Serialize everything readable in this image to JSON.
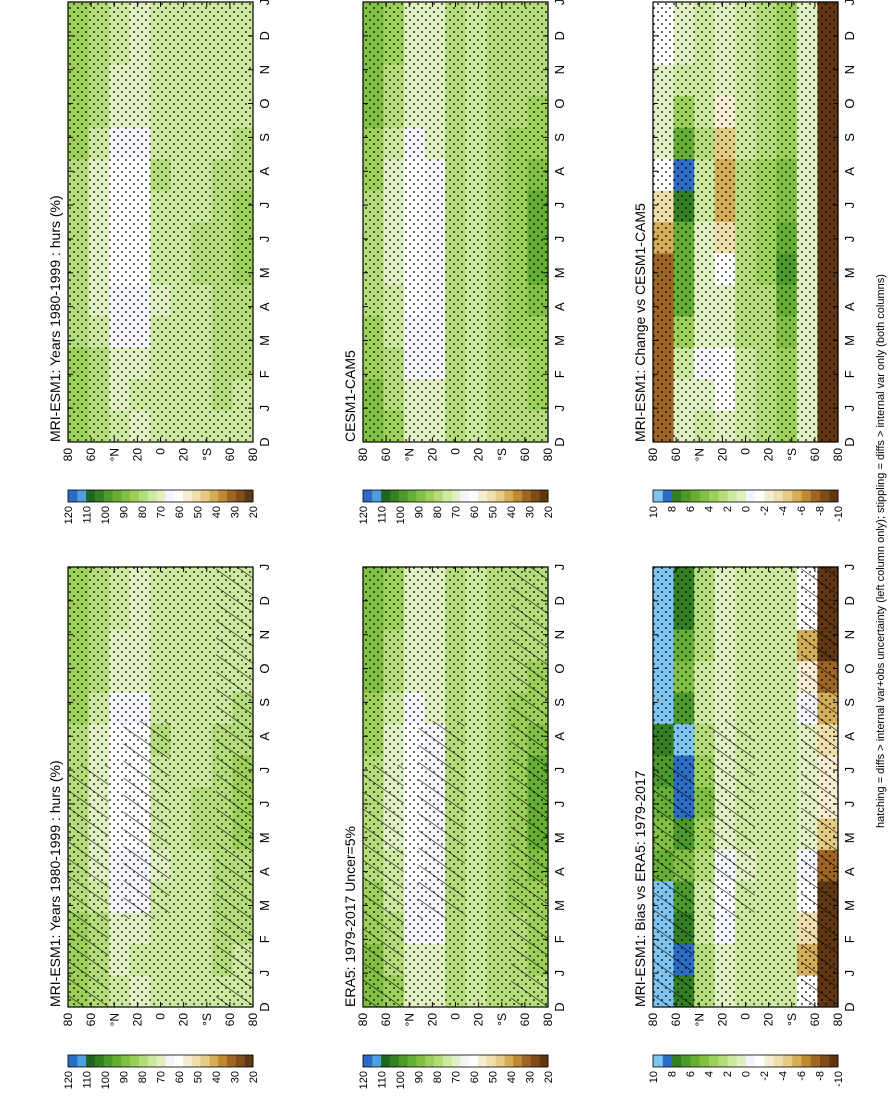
{
  "footer_note": "hatching = diffs > internal var+obs uncertainty (left column only); stippling = diffs > internal var only (both columns)",
  "palettes": {
    "abs": [
      "#603712",
      "#7f4d1a",
      "#9e6624",
      "#bd8a33",
      "#d3ad58",
      "#e5cc86",
      "#efdfad",
      "#f6edd2",
      "#ffffff",
      "#f3f5fb",
      "#e1f0c2",
      "#cde8a0",
      "#b5dc7a",
      "#9cd05b",
      "#82c043",
      "#67ae35",
      "#4c9a2c",
      "#347f24",
      "#1f6620",
      "#4f9ee0",
      "#2b6cc4"
    ],
    "diff": [
      "#603712",
      "#7f4d1a",
      "#9e6624",
      "#bd8a33",
      "#d3ad58",
      "#e5cc86",
      "#efdfad",
      "#f6edd2",
      "#ffffff",
      "#f3f5fb",
      "#e1f0c2",
      "#cde8a0",
      "#b5dc7a",
      "#9cd05b",
      "#82c043",
      "#67ae35",
      "#4c9a2c",
      "#347f24",
      "#2b6cc4",
      "#7ec4ee"
    ]
  },
  "chart_data": [
    {
      "type": "heatmap",
      "title": "MRI-ESM1: Years 1980-1999 : hurs (%)",
      "panel": "row1-left",
      "x_ticks": [
        "D",
        "J",
        "F",
        "M",
        "A",
        "M",
        "J",
        "J",
        "A",
        "S",
        "O",
        "N",
        "D",
        "J"
      ],
      "y_ticks": [
        "80",
        "60",
        "°N",
        "20",
        "0",
        "20",
        "°S",
        "60",
        "80"
      ],
      "colorbar_ticks": [
        "120",
        "110",
        "100",
        "90",
        "80",
        "70",
        "60",
        "50",
        "40",
        "30",
        "20"
      ],
      "colorbar_range": [
        15,
        125
      ],
      "values": [
        [
          88,
          86,
          84,
          82,
          80,
          80,
          79,
          80,
          82,
          85,
          87,
          88,
          88,
          88
        ],
        [
          82,
          80,
          78,
          74,
          70,
          70,
          68,
          68,
          70,
          75,
          79,
          81,
          82,
          82
        ],
        [
          74,
          72,
          70,
          66,
          63,
          62,
          60,
          61,
          62,
          66,
          70,
          72,
          74,
          74
        ],
        [
          72,
          73,
          71,
          67,
          64,
          62,
          61,
          61,
          62,
          65,
          68,
          70,
          72,
          72
        ],
        [
          75,
          76,
          75,
          74,
          72,
          74,
          76,
          77,
          78,
          77,
          76,
          75,
          75,
          75
        ],
        [
          76,
          76,
          76,
          77,
          77,
          76,
          74,
          74,
          76,
          77,
          77,
          77,
          76,
          76
        ],
        [
          75,
          75,
          75,
          76,
          77,
          78,
          78,
          77,
          77,
          76,
          75,
          75,
          75,
          75
        ],
        [
          77,
          78,
          78,
          78,
          78,
          78,
          78,
          78,
          78,
          77,
          77,
          77,
          77,
          77
        ],
        [
          74,
          76,
          78,
          80,
          82,
          84,
          84,
          84,
          82,
          80,
          77,
          74,
          74,
          74
        ]
      ],
      "hatching": true,
      "stippling": true
    },
    {
      "type": "heatmap",
      "title": "MRI-ESM1: Years 1980-1999 : hurs (%)",
      "panel": "row1-right",
      "x_ticks": [
        "D",
        "J",
        "F",
        "M",
        "A",
        "M",
        "J",
        "J",
        "A",
        "S",
        "O",
        "N",
        "D",
        "J"
      ],
      "y_ticks": [
        "80",
        "60",
        "°N",
        "20",
        "0",
        "20",
        "°S",
        "60",
        "80"
      ],
      "colorbar_ticks": [
        "120",
        "110",
        "100",
        "90",
        "80",
        "70",
        "60",
        "50",
        "40",
        "30",
        "20"
      ],
      "colorbar_range": [
        15,
        125
      ],
      "values": [
        [
          88,
          86,
          84,
          82,
          80,
          80,
          79,
          80,
          82,
          85,
          87,
          88,
          88,
          88
        ],
        [
          82,
          80,
          78,
          74,
          70,
          70,
          68,
          68,
          70,
          75,
          79,
          81,
          82,
          82
        ],
        [
          74,
          72,
          70,
          66,
          63,
          62,
          60,
          61,
          62,
          66,
          70,
          72,
          74,
          74
        ],
        [
          72,
          73,
          71,
          67,
          64,
          62,
          61,
          61,
          62,
          65,
          68,
          70,
          72,
          72
        ],
        [
          75,
          76,
          75,
          74,
          72,
          74,
          76,
          77,
          78,
          77,
          76,
          75,
          75,
          75
        ],
        [
          76,
          76,
          76,
          77,
          77,
          76,
          74,
          74,
          76,
          77,
          77,
          77,
          76,
          76
        ],
        [
          75,
          75,
          75,
          76,
          77,
          78,
          78,
          77,
          77,
          76,
          75,
          75,
          75,
          75
        ],
        [
          77,
          78,
          78,
          78,
          78,
          78,
          78,
          78,
          78,
          77,
          77,
          77,
          77,
          77
        ],
        [
          74,
          76,
          78,
          80,
          82,
          84,
          84,
          84,
          82,
          80,
          77,
          74,
          74,
          74
        ]
      ],
      "hatching": false,
      "stippling": true
    },
    {
      "type": "heatmap",
      "title": "ERA5: 1979-2017 Uncer=5%",
      "panel": "row2-left",
      "x_ticks": [
        "D",
        "J",
        "F",
        "M",
        "A",
        "M",
        "J",
        "J",
        "A",
        "S",
        "O",
        "N",
        "D",
        "J"
      ],
      "y_ticks": [
        "80",
        "60",
        "°N",
        "20",
        "0",
        "20",
        "°S",
        "60",
        "80"
      ],
      "colorbar_ticks": [
        "120",
        "110",
        "100",
        "90",
        "80",
        "70",
        "60",
        "50",
        "40",
        "30",
        "20"
      ],
      "colorbar_range": [
        15,
        125
      ],
      "values": [
        [
          92,
          90,
          88,
          84,
          82,
          80,
          78,
          80,
          84,
          88,
          90,
          92,
          92,
          92
        ],
        [
          84,
          82,
          80,
          76,
          73,
          72,
          70,
          70,
          72,
          76,
          80,
          83,
          84,
          84
        ],
        [
          72,
          70,
          67,
          64,
          62,
          62,
          61,
          61,
          62,
          65,
          69,
          71,
          72,
          72
        ],
        [
          68,
          69,
          67,
          64,
          63,
          64,
          65,
          66,
          66,
          68,
          70,
          70,
          68,
          68
        ],
        [
          78,
          79,
          79,
          78,
          78,
          78,
          79,
          80,
          80,
          79,
          79,
          78,
          78,
          78
        ],
        [
          76,
          76,
          76,
          76,
          77,
          76,
          75,
          75,
          76,
          77,
          77,
          77,
          76,
          76
        ],
        [
          78,
          78,
          79,
          80,
          80,
          81,
          81,
          81,
          80,
          79,
          79,
          78,
          78,
          78
        ],
        [
          80,
          81,
          82,
          84,
          86,
          87,
          87,
          87,
          86,
          84,
          82,
          80,
          80,
          80
        ],
        [
          82,
          84,
          86,
          88,
          92,
          96,
          98,
          96,
          92,
          88,
          84,
          82,
          82,
          82
        ]
      ],
      "hatching": true,
      "stippling": true
    },
    {
      "type": "heatmap",
      "title": "CESM1-CAM5",
      "panel": "row2-right",
      "x_ticks": [
        "D",
        "J",
        "F",
        "M",
        "A",
        "M",
        "J",
        "J",
        "A",
        "S",
        "O",
        "N",
        "D",
        "J"
      ],
      "y_ticks": [
        "80",
        "60",
        "°N",
        "20",
        "0",
        "20",
        "°S",
        "60",
        "80"
      ],
      "colorbar_ticks": [
        "120",
        "110",
        "100",
        "90",
        "80",
        "70",
        "60",
        "50",
        "40",
        "30",
        "20"
      ],
      "colorbar_range": [
        15,
        125
      ],
      "values": [
        [
          92,
          90,
          88,
          84,
          82,
          80,
          78,
          80,
          84,
          88,
          90,
          92,
          92,
          92
        ],
        [
          84,
          82,
          80,
          76,
          73,
          72,
          70,
          70,
          72,
          76,
          80,
          83,
          84,
          84
        ],
        [
          72,
          70,
          67,
          64,
          62,
          62,
          61,
          61,
          62,
          65,
          69,
          71,
          72,
          72
        ],
        [
          68,
          69,
          67,
          64,
          63,
          64,
          65,
          66,
          66,
          68,
          70,
          70,
          68,
          68
        ],
        [
          78,
          79,
          79,
          78,
          78,
          78,
          79,
          80,
          80,
          79,
          79,
          78,
          78,
          78
        ],
        [
          76,
          76,
          76,
          76,
          77,
          76,
          75,
          75,
          76,
          77,
          77,
          77,
          76,
          76
        ],
        [
          78,
          78,
          79,
          80,
          80,
          81,
          81,
          81,
          80,
          79,
          79,
          78,
          78,
          78
        ],
        [
          80,
          81,
          82,
          84,
          86,
          87,
          87,
          87,
          86,
          84,
          82,
          80,
          80,
          80
        ],
        [
          82,
          84,
          86,
          88,
          92,
          96,
          98,
          96,
          92,
          88,
          84,
          82,
          82,
          82
        ]
      ],
      "hatching": false,
      "stippling": true
    },
    {
      "type": "heatmap",
      "title": "MRI-ESM1: Bias vs ERA5: 1979-2017",
      "panel": "row3-left",
      "x_ticks": [
        "D",
        "J",
        "F",
        "M",
        "A",
        "M",
        "J",
        "J",
        "A",
        "S",
        "O",
        "N",
        "D",
        "J"
      ],
      "y_ticks": [
        "80",
        "60",
        "°N",
        "20",
        "0",
        "20",
        "°S",
        "60",
        "80"
      ],
      "colorbar_ticks": [
        "10",
        "8",
        "6",
        "4",
        "2",
        "0",
        "-2",
        "-4",
        "-6",
        "-8",
        "-10"
      ],
      "colorbar_range": [
        -11,
        11
      ],
      "values": [
        [
          12,
          12,
          11,
          10,
          6,
          5,
          6,
          7,
          8,
          10,
          12,
          12,
          12,
          12
        ],
        [
          8,
          9,
          8,
          7,
          5,
          7,
          9,
          9,
          10,
          7,
          5,
          6,
          8,
          8
        ],
        [
          3,
          3,
          2,
          2,
          3,
          4,
          5,
          4,
          3,
          2,
          2,
          3,
          3,
          3
        ],
        [
          1,
          0,
          -1,
          -2,
          -1,
          0,
          0,
          0,
          1,
          1,
          0,
          0,
          1,
          1
        ],
        [
          2,
          2,
          2,
          2,
          1,
          2,
          2,
          2,
          2,
          2,
          2,
          2,
          2,
          2
        ],
        [
          2,
          2,
          2,
          2,
          2,
          2,
          2,
          2,
          2,
          2,
          2,
          2,
          2,
          2
        ],
        [
          2,
          2,
          2,
          2,
          2,
          2,
          2,
          2,
          2,
          2,
          2,
          2,
          2,
          2
        ],
        [
          -2,
          -6,
          -4,
          -2,
          -1,
          0,
          0,
          0,
          0,
          -1,
          -3,
          -6,
          -2,
          -2
        ],
        [
          -12,
          -12,
          -11,
          -10,
          -8,
          -5,
          -3,
          -3,
          -4,
          -6,
          -8,
          -11,
          -12,
          -12
        ]
      ],
      "hatching": true,
      "stippling": true
    },
    {
      "type": "heatmap",
      "title": "MRI-ESM1: Change vs CESM1-CAM5",
      "panel": "row3-right",
      "x_ticks": [
        "D",
        "J",
        "F",
        "M",
        "A",
        "M",
        "J",
        "J",
        "A",
        "S",
        "O",
        "N",
        "D",
        "J"
      ],
      "y_ticks": [
        "80",
        "60",
        "°N",
        "20",
        "0",
        "20",
        "°S",
        "60",
        "80"
      ],
      "colorbar_ticks": [
        "10",
        "8",
        "6",
        "4",
        "2",
        "0",
        "-2",
        "-4",
        "-6",
        "-8",
        "-10"
      ],
      "colorbar_range": [
        -11,
        11
      ],
      "values": [
        [
          -8,
          -8,
          -8,
          -8,
          -8,
          -8,
          -6,
          -4,
          -2,
          0,
          0,
          0,
          -2,
          -2
        ],
        [
          0,
          0,
          2,
          4,
          6,
          6,
          6,
          8,
          9,
          6,
          4,
          2,
          0,
          0
        ],
        [
          2,
          0,
          -1,
          0,
          0,
          0,
          0,
          2,
          2,
          3,
          2,
          2,
          2,
          2
        ],
        [
          0,
          -2,
          -2,
          0,
          0,
          -2,
          -4,
          -6,
          -6,
          -5,
          -3,
          0,
          0,
          0
        ],
        [
          2,
          2,
          2,
          3,
          3,
          3,
          3,
          3,
          3,
          2,
          2,
          2,
          2,
          2
        ],
        [
          3,
          3,
          3,
          3,
          3,
          4,
          4,
          4,
          4,
          3,
          3,
          3,
          3,
          3
        ],
        [
          4,
          4,
          4,
          5,
          6,
          7,
          6,
          5,
          5,
          4,
          4,
          4,
          4,
          4
        ],
        [
          1,
          1,
          1,
          1,
          1,
          1,
          1,
          1,
          1,
          1,
          1,
          1,
          1,
          1
        ],
        [
          -12,
          -12,
          -12,
          -12,
          -12,
          -12,
          -12,
          -12,
          -12,
          -12,
          -12,
          -12,
          -12,
          -12
        ]
      ],
      "hatching": false,
      "stippling": true
    }
  ]
}
